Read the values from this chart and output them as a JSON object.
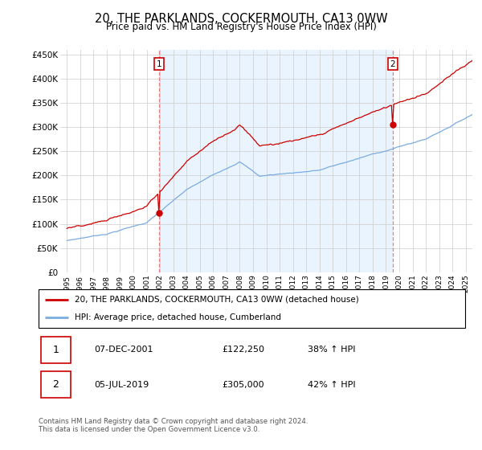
{
  "title": "20, THE PARKLANDS, COCKERMOUTH, CA13 0WW",
  "subtitle": "Price paid vs. HM Land Registry's House Price Index (HPI)",
  "ylabel_ticks": [
    "£0",
    "£50K",
    "£100K",
    "£150K",
    "£200K",
    "£250K",
    "£300K",
    "£350K",
    "£400K",
    "£450K"
  ],
  "ytick_values": [
    0,
    50000,
    100000,
    150000,
    200000,
    250000,
    300000,
    350000,
    400000,
    450000
  ],
  "ylim": [
    0,
    460000
  ],
  "xlim_start": 1994.5,
  "xlim_end": 2025.5,
  "hpi_color": "#7aace0",
  "price_color": "#cc0000",
  "vline_color": "#e88080",
  "marker1_x": 2001.92,
  "marker1_y": 122250,
  "marker2_x": 2019.5,
  "marker2_y": 305000,
  "shade_color": "#ddeeff",
  "legend_line1": "20, THE PARKLANDS, COCKERMOUTH, CA13 0WW (detached house)",
  "legend_line2": "HPI: Average price, detached house, Cumberland",
  "ann1_date": "07-DEC-2001",
  "ann1_price": "£122,250",
  "ann1_hpi": "38% ↑ HPI",
  "ann2_date": "05-JUL-2019",
  "ann2_price": "£305,000",
  "ann2_hpi": "42% ↑ HPI",
  "footnote": "Contains HM Land Registry data © Crown copyright and database right 2024.\nThis data is licensed under the Open Government Licence v3.0.",
  "background_color": "#ffffff",
  "grid_color": "#cccccc"
}
